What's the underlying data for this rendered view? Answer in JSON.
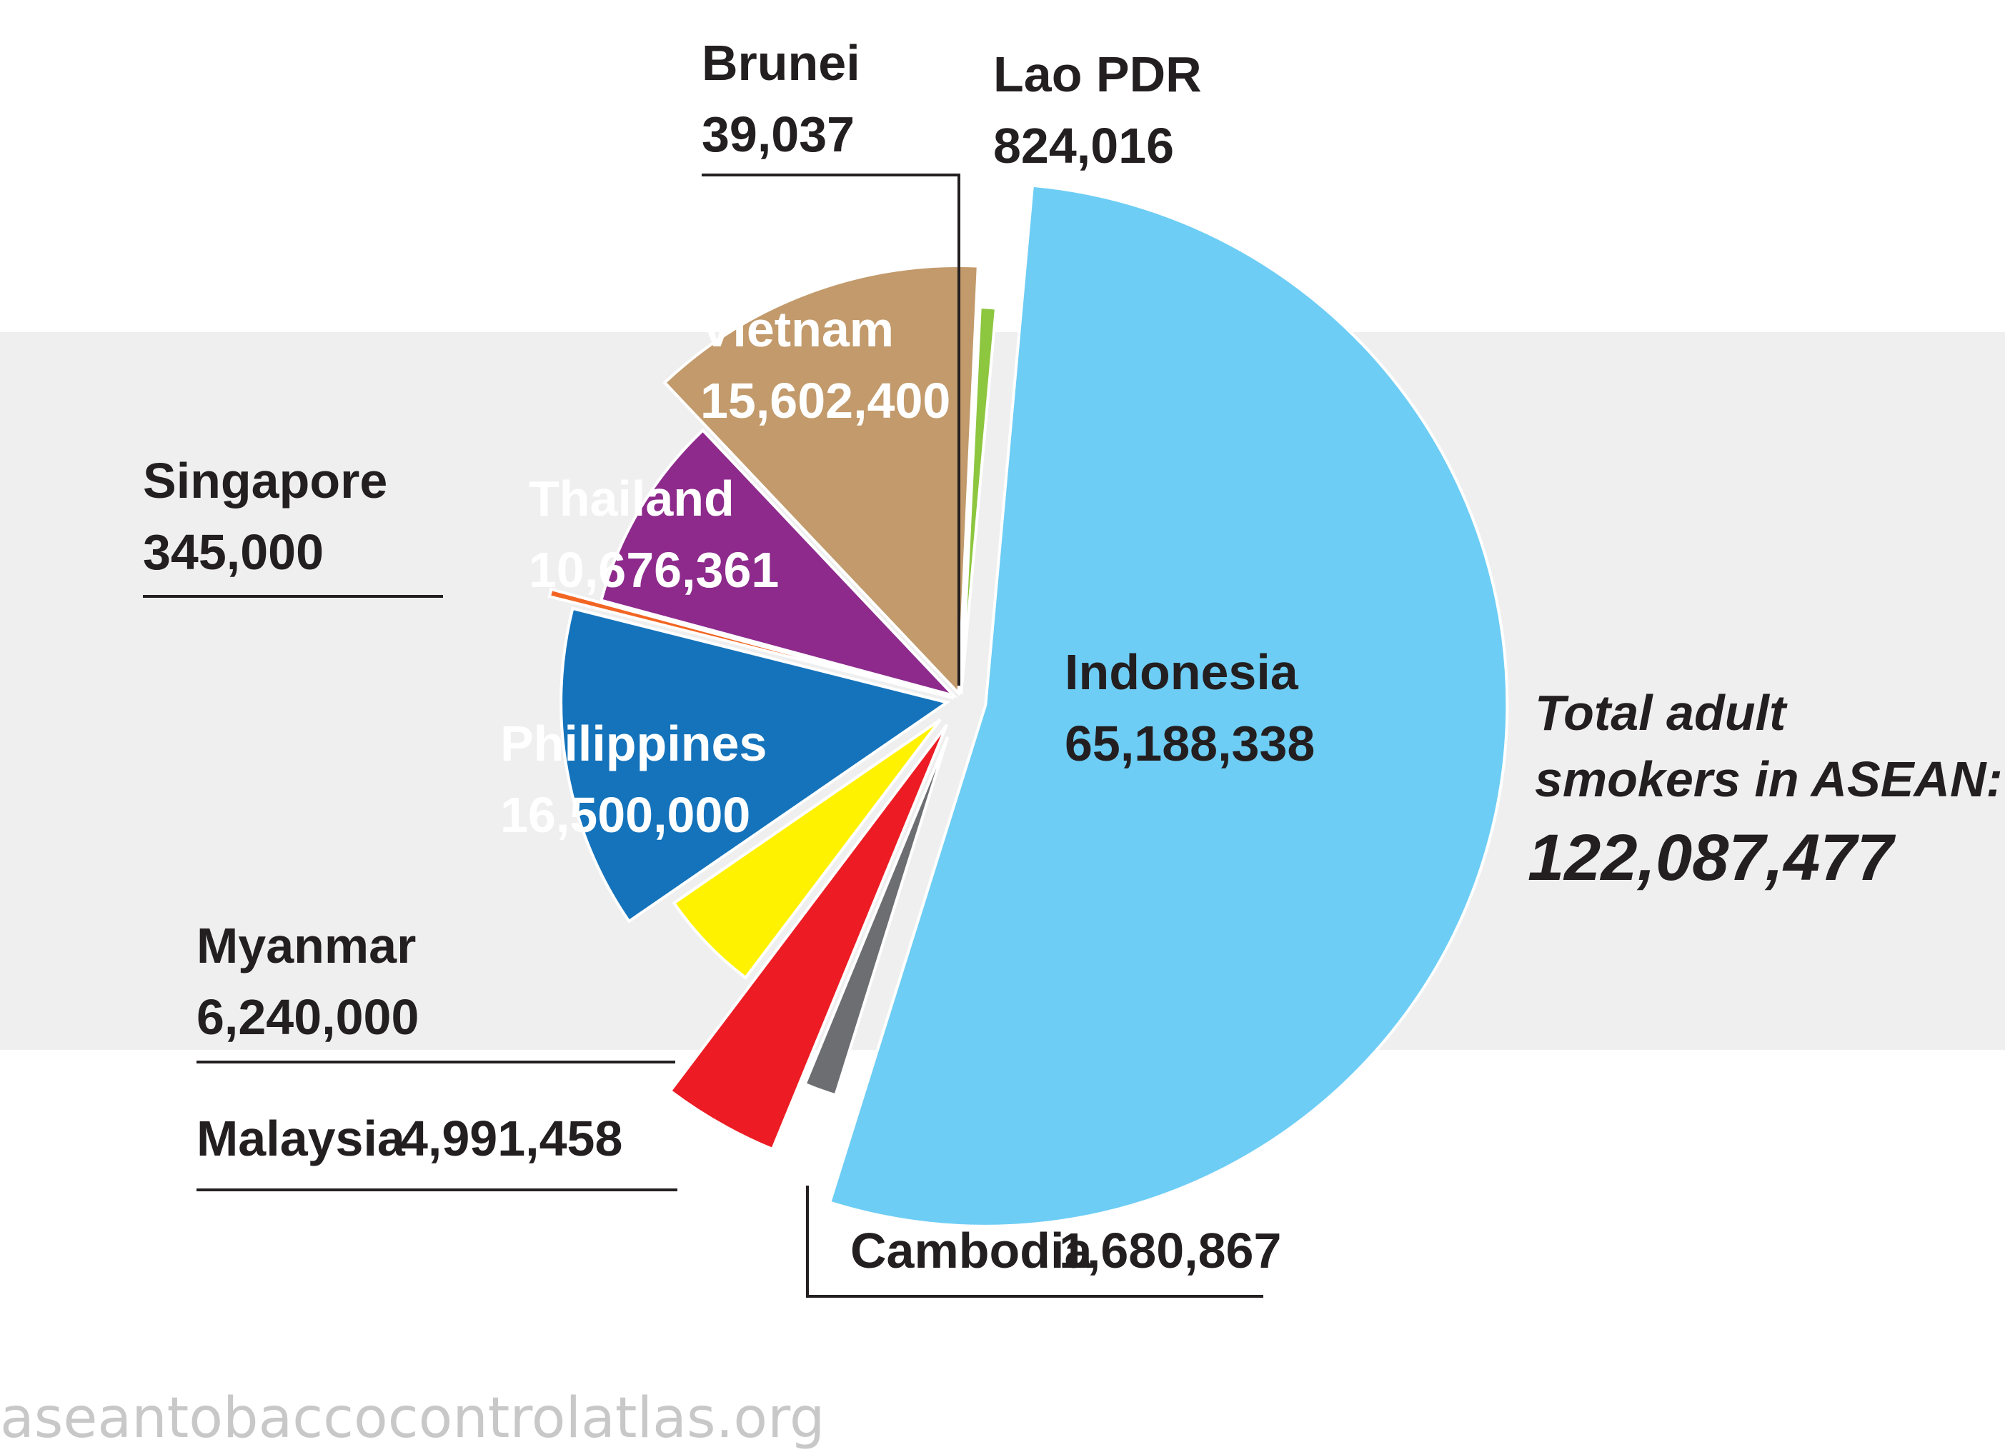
{
  "chart_data": {
    "type": "pie",
    "slices": [
      {
        "label": "Indonesia",
        "value": 65188338,
        "value_text": "65,188,338",
        "color": "#6dcdf5"
      },
      {
        "label": "Cambodia",
        "value": 1680867,
        "value_text": "1,680,867",
        "color": "#6d6e71"
      },
      {
        "label": "Malaysia",
        "value": 4991458,
        "value_text": "4,991,458",
        "color": "#ed1c24"
      },
      {
        "label": "Myanmar",
        "value": 6240000,
        "value_text": "6,240,000",
        "color": "#fff200"
      },
      {
        "label": "Philippines",
        "value": 16500000,
        "value_text": "16,500,000",
        "color": "#1473bb"
      },
      {
        "label": "Singapore",
        "value": 345000,
        "value_text": "345,000",
        "color": "#f26522"
      },
      {
        "label": "Thailand",
        "value": 10676361,
        "value_text": "10,676,361",
        "color": "#8d2a8c"
      },
      {
        "label": "Vietnam",
        "value": 15602400,
        "value_text": "15,602,400",
        "color": "#c29a6b"
      },
      {
        "label": "Brunei",
        "value": 39037,
        "value_text": "39,037",
        "color": "#231f20"
      },
      {
        "label": "Lao PDR",
        "value": 824016,
        "value_text": "824,016",
        "color": "#8dc63f"
      }
    ],
    "total": {
      "line1": "Total adult",
      "line2": "smokers in ASEAN:",
      "value": "122,087,477"
    }
  },
  "watermark": "aseantobaccocontrolatlas.org"
}
